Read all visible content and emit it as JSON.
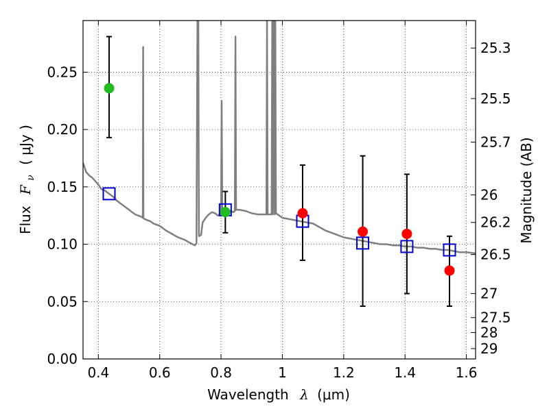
{
  "chart_data": {
    "type": "scatter",
    "title": "",
    "xlabel": {
      "text": "Wavelength",
      "symbol": "λ",
      "unit": "(μm)"
    },
    "ylabel": {
      "text": "Flux",
      "symbol": "F",
      "subscript": "ν",
      "unit": "( μJy )"
    },
    "y2label": "Magnitude (AB)",
    "xlim": [
      0.35,
      1.63
    ],
    "ylim": [
      0.0,
      0.295
    ],
    "grid": true,
    "x_ticks": [
      0.4,
      0.6,
      0.8,
      1.0,
      1.2,
      1.4,
      1.6
    ],
    "x_tick_labels": [
      "0.4",
      "0.6",
      "0.8",
      "1",
      "1.2",
      "1.4",
      "1.6"
    ],
    "y_ticks": [
      0.0,
      0.05,
      0.1,
      0.15,
      0.2,
      0.25
    ],
    "y_tick_labels": [
      "0.00",
      "0.05",
      "0.10",
      "0.15",
      "0.20",
      "0.25"
    ],
    "y2_ticks": [
      {
        "label": "25.3",
        "flux": 0.271
      },
      {
        "label": "25.5",
        "flux": 0.227
      },
      {
        "label": "25.7",
        "flux": 0.189
      },
      {
        "label": "26",
        "flux": 0.143
      },
      {
        "label": "26.2",
        "flux": 0.119
      },
      {
        "label": "26.5",
        "flux": 0.091
      },
      {
        "label": "27",
        "flux": 0.057
      },
      {
        "label": "27.5",
        "flux": 0.036
      },
      {
        "label": "28",
        "flux": 0.023
      },
      {
        "label": "29",
        "flux": 0.009
      }
    ],
    "series": [
      {
        "kind": "line",
        "color": "#7f7f7f",
        "points": [
          [
            0.35,
            0.171
          ],
          [
            0.36,
            0.163
          ],
          [
            0.37,
            0.16
          ],
          [
            0.38,
            0.158
          ],
          [
            0.39,
            0.155
          ],
          [
            0.4,
            0.152
          ],
          [
            0.41,
            0.148
          ],
          [
            0.42,
            0.147
          ],
          [
            0.43,
            0.145
          ],
          [
            0.44,
            0.143
          ],
          [
            0.45,
            0.141
          ],
          [
            0.46,
            0.138
          ],
          [
            0.47,
            0.136
          ],
          [
            0.48,
            0.134
          ],
          [
            0.49,
            0.132
          ],
          [
            0.5,
            0.13
          ],
          [
            0.51,
            0.128
          ],
          [
            0.52,
            0.126
          ],
          [
            0.53,
            0.125
          ],
          [
            0.54,
            0.124
          ],
          [
            0.545,
            0.123
          ],
          [
            0.546,
            0.272
          ],
          [
            0.547,
            0.123
          ],
          [
            0.55,
            0.122
          ],
          [
            0.56,
            0.121
          ],
          [
            0.57,
            0.12
          ],
          [
            0.58,
            0.118
          ],
          [
            0.59,
            0.117
          ],
          [
            0.6,
            0.116
          ],
          [
            0.62,
            0.112
          ],
          [
            0.64,
            0.109
          ],
          [
            0.66,
            0.106
          ],
          [
            0.68,
            0.104
          ],
          [
            0.7,
            0.101
          ],
          [
            0.715,
            0.099
          ],
          [
            0.72,
            0.101
          ],
          [
            0.723,
            0.295
          ],
          [
            0.726,
            0.295
          ],
          [
            0.728,
            0.107
          ],
          [
            0.735,
            0.108
          ],
          [
            0.74,
            0.119
          ],
          [
            0.75,
            0.123
          ],
          [
            0.76,
            0.126
          ],
          [
            0.77,
            0.128
          ],
          [
            0.78,
            0.127
          ],
          [
            0.79,
            0.125
          ],
          [
            0.8,
            0.127
          ],
          [
            0.802,
            0.225
          ],
          [
            0.804,
            0.126
          ],
          [
            0.81,
            0.127
          ],
          [
            0.82,
            0.129
          ],
          [
            0.83,
            0.129
          ],
          [
            0.84,
            0.128
          ],
          [
            0.845,
            0.129
          ],
          [
            0.847,
            0.281
          ],
          [
            0.849,
            0.13
          ],
          [
            0.86,
            0.13
          ],
          [
            0.88,
            0.129
          ],
          [
            0.9,
            0.127
          ],
          [
            0.92,
            0.126
          ],
          [
            0.94,
            0.126
          ],
          [
            0.948,
            0.126
          ],
          [
            0.95,
            0.295
          ],
          [
            0.952,
            0.126
          ],
          [
            0.96,
            0.126
          ],
          [
            0.965,
            0.126
          ],
          [
            0.967,
            0.295
          ],
          [
            0.969,
            0.126
          ],
          [
            0.972,
            0.295
          ],
          [
            0.975,
            0.126
          ],
          [
            0.977,
            0.295
          ],
          [
            0.979,
            0.127
          ],
          [
            0.99,
            0.125
          ],
          [
            1.0,
            0.123
          ],
          [
            1.02,
            0.122
          ],
          [
            1.04,
            0.121
          ],
          [
            1.06,
            0.12
          ],
          [
            1.08,
            0.119
          ],
          [
            1.1,
            0.118
          ],
          [
            1.12,
            0.115
          ],
          [
            1.14,
            0.112
          ],
          [
            1.16,
            0.11
          ],
          [
            1.18,
            0.108
          ],
          [
            1.2,
            0.106
          ],
          [
            1.22,
            0.105
          ],
          [
            1.24,
            0.104
          ],
          [
            1.26,
            0.103
          ],
          [
            1.28,
            0.102
          ],
          [
            1.3,
            0.101
          ],
          [
            1.32,
            0.1
          ],
          [
            1.34,
            0.1
          ],
          [
            1.36,
            0.099
          ],
          [
            1.38,
            0.099
          ],
          [
            1.4,
            0.098
          ],
          [
            1.42,
            0.098
          ],
          [
            1.44,
            0.097
          ],
          [
            1.46,
            0.097
          ],
          [
            1.48,
            0.096
          ],
          [
            1.5,
            0.096
          ],
          [
            1.52,
            0.095
          ],
          [
            1.54,
            0.095
          ],
          [
            1.56,
            0.094
          ],
          [
            1.58,
            0.093
          ],
          [
            1.6,
            0.093
          ],
          [
            1.63,
            0.092
          ]
        ]
      },
      {
        "kind": "errorbar",
        "color": "#000000",
        "bars": [
          {
            "x": 0.435,
            "lo": 0.193,
            "hi": 0.281
          },
          {
            "x": 0.814,
            "lo": 0.11,
            "hi": 0.146
          },
          {
            "x": 1.066,
            "lo": 0.086,
            "hi": 0.169
          },
          {
            "x": 1.262,
            "lo": 0.046,
            "hi": 0.177
          },
          {
            "x": 1.406,
            "lo": 0.057,
            "hi": 0.161
          },
          {
            "x": 1.545,
            "lo": 0.046,
            "hi": 0.107
          }
        ]
      },
      {
        "kind": "square",
        "color": "#0000cc",
        "points": [
          [
            0.435,
            0.144
          ],
          [
            0.814,
            0.13
          ],
          [
            1.066,
            0.12
          ],
          [
            1.262,
            0.101
          ],
          [
            1.406,
            0.098
          ],
          [
            1.545,
            0.095
          ]
        ]
      },
      {
        "kind": "circle",
        "color": "#22bb22",
        "points": [
          [
            0.435,
            0.236
          ],
          [
            0.814,
            0.128
          ]
        ]
      },
      {
        "kind": "circle",
        "color": "#ff0000",
        "points": [
          [
            1.066,
            0.127
          ],
          [
            1.262,
            0.111
          ],
          [
            1.406,
            0.109
          ],
          [
            1.545,
            0.077
          ]
        ]
      }
    ]
  }
}
